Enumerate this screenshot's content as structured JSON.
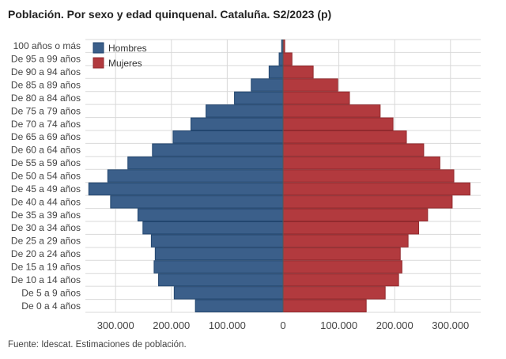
{
  "title": "Población. Por sexo y edad quinquenal. Cataluña. S2/2023 (p)",
  "source": "Fuente: Idescat. Estimaciones de población.",
  "colors": {
    "hombres": "#3b5f8a",
    "hombres_border": "#22466f",
    "mujeres": "#b23a3e",
    "mujeres_border": "#922a2e",
    "grid": "#d9d9d9"
  },
  "chart_data": {
    "type": "bar",
    "orientation": "horizontal",
    "title": "Población. Por sexo y edad quinquenal. Cataluña. S2/2023 (p)",
    "categories": [
      "100 años o más",
      "De 95 a 99 años",
      "De 90 a 94 años",
      "De 85 a 89 años",
      "De 80 a 84 años",
      "De 75 a 79 años",
      "De 70 a 74 años",
      "De 65 a 69 años",
      "De 60 a 64 años",
      "De 55 a 59 años",
      "De 50 a 54 años",
      "De 45 a 49 años",
      "De 40 a 44 años",
      "De 35 a 39 años",
      "De 30 a 34 años",
      "De 25 a 29 años",
      "De 20 a 24 años",
      "De 15 a 19 años",
      "De 10 a 14 años",
      "De 5 a 9 años",
      "De 0 a 4 años"
    ],
    "series": [
      {
        "name": "Hombres",
        "values": [
          2500,
          7000,
          25000,
          57000,
          87000,
          138000,
          165000,
          197000,
          234000,
          278000,
          314000,
          348000,
          309000,
          260000,
          251000,
          236000,
          229000,
          231000,
          223000,
          195000,
          157000
        ]
      },
      {
        "name": "Mujeres",
        "values": [
          3000,
          16000,
          54000,
          98000,
          119000,
          174000,
          197000,
          221000,
          252000,
          281000,
          306000,
          335000,
          303000,
          259000,
          243000,
          224000,
          210000,
          213000,
          207000,
          183000,
          149000
        ]
      }
    ],
    "xlim": [
      -350000,
      350000
    ],
    "xticks": [
      -300000,
      -200000,
      -100000,
      0,
      100000,
      200000,
      300000
    ],
    "xtick_labels": [
      "300.000",
      "200.000",
      "100.000",
      "0",
      "100.000",
      "200.000",
      "300.000"
    ],
    "legend_position": "top-left",
    "grid": true
  }
}
